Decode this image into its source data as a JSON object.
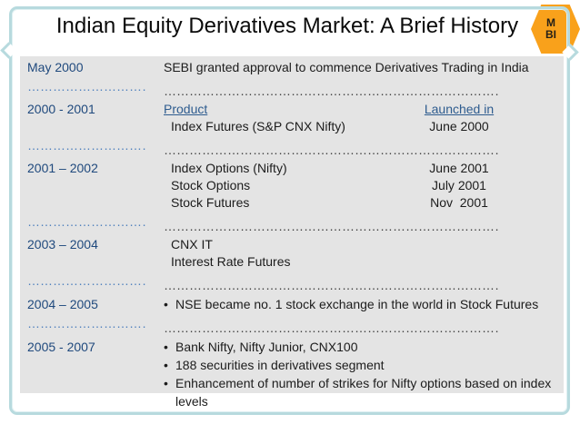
{
  "slide": {
    "title": "Indian Equity Derivatives Market: A Brief History",
    "badge": {
      "line1": "M",
      "line2": "BI"
    },
    "colors": {
      "accent_orange": "#F9A11B",
      "frame_blue": "#B7DADE",
      "panel_gray": "#E4E4E4",
      "period_blue": "#1F497D",
      "link_blue": "#2E5C8F",
      "left_dots_blue": "#4F81BD",
      "right_dots_gray": "#3F3F3F",
      "body_text": "#1C1C1C"
    },
    "timeline": {
      "dot_leader": "…………………………………………………………………………………………………………………..",
      "rows": [
        {
          "type": "entry",
          "period": "May 2000",
          "items": [
            {
              "text": "SEBI granted approval to commence Derivatives Trading in India"
            }
          ]
        },
        {
          "type": "dots"
        },
        {
          "type": "entry",
          "period": "2000 - 2001",
          "items": [
            {
              "text": "Product",
              "date": "Launched in",
              "link": true
            },
            {
              "text": "Index Futures (S&P CNX Nifty)",
              "date": "June 2000",
              "indent": true
            }
          ]
        },
        {
          "type": "dots"
        },
        {
          "type": "entry",
          "period": "2001 – 2002",
          "items": [
            {
              "text": "Index Options (Nifty)",
              "date": "June 2001",
              "indent": true
            },
            {
              "text": "Stock Options",
              "date": "July 2001",
              "indent": true
            },
            {
              "text": "Stock Futures",
              "date": "Nov  2001",
              "indent": true
            }
          ]
        },
        {
          "type": "dots"
        },
        {
          "type": "entry",
          "period": "2003 – 2004",
          "items": [
            {
              "text": "CNX IT",
              "indent": true
            },
            {
              "text": "Interest Rate Futures",
              "indent": true
            }
          ]
        },
        {
          "type": "dots"
        },
        {
          "type": "entry",
          "period": "2004 – 2005",
          "items": [
            {
              "text": "NSE became no. 1 stock exchange in the world in Stock Futures",
              "bullet": true
            }
          ]
        },
        {
          "type": "dots"
        },
        {
          "type": "entry",
          "period": "2005 - 2007",
          "items": [
            {
              "text": "Bank Nifty, Nifty Junior, CNX100",
              "bullet": true
            },
            {
              "text": "188 securities in derivatives segment",
              "bullet": true
            },
            {
              "text": "Enhancement of number of strikes for Nifty options based on index levels",
              "bullet": true
            }
          ]
        }
      ]
    }
  }
}
